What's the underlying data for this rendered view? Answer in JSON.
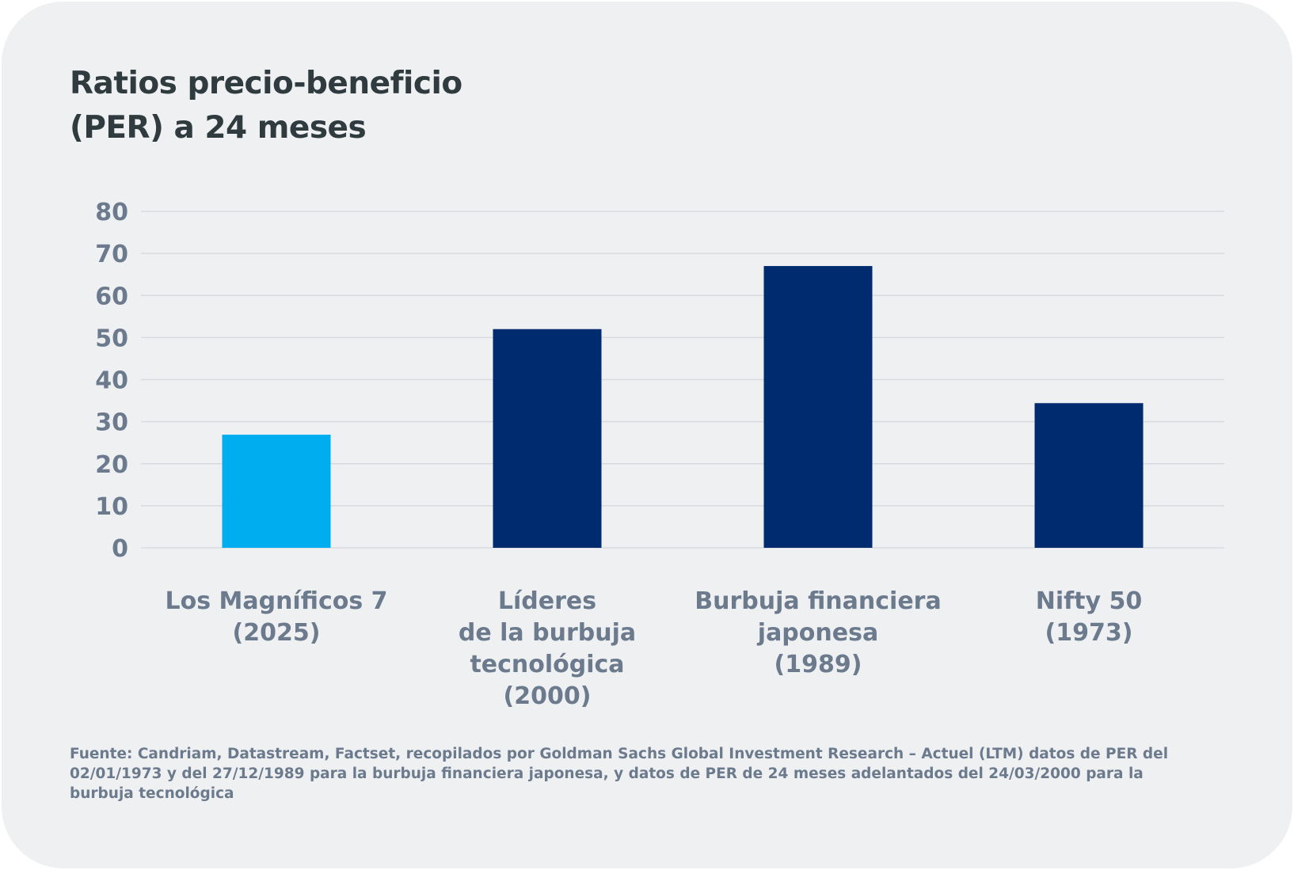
{
  "title_lines": [
    "Ratios precio-beneficio",
    "(PER) a 24 meses"
  ],
  "chart_data": {
    "type": "bar",
    "title": "Ratios precio-beneficio (PER) a 24 meses",
    "categories": [
      [
        "Los Magníficos 7",
        "(2025)"
      ],
      [
        "Líderes",
        "de la burbuja",
        "tecnológica",
        "(2000)"
      ],
      [
        "Burbuja financiera",
        "japonesa",
        "(1989)"
      ],
      [
        "Nifty 50",
        "(1973)"
      ]
    ],
    "values": [
      26.9,
      52,
      67,
      34.4
    ],
    "colors": [
      "#00aeef",
      "#002b6e",
      "#002b6e",
      "#002b6e"
    ],
    "ylim": [
      0,
      80
    ],
    "yticks": [
      0,
      10,
      20,
      30,
      40,
      50,
      60,
      70,
      80
    ],
    "grid": true,
    "xlabel": "",
    "ylabel": ""
  },
  "source_text": "Fuente: Candriam, Datastream, Factset, recopilados por Goldman Sachs Global Investment Research – Actuel (LTM) datos de PER del 02/01/1973 y del 27/12/1989 para la burbuja financiera japonesa, y datos de PER de 24 meses adelantados del 24/03/2000 para la burbuja tecnológica"
}
